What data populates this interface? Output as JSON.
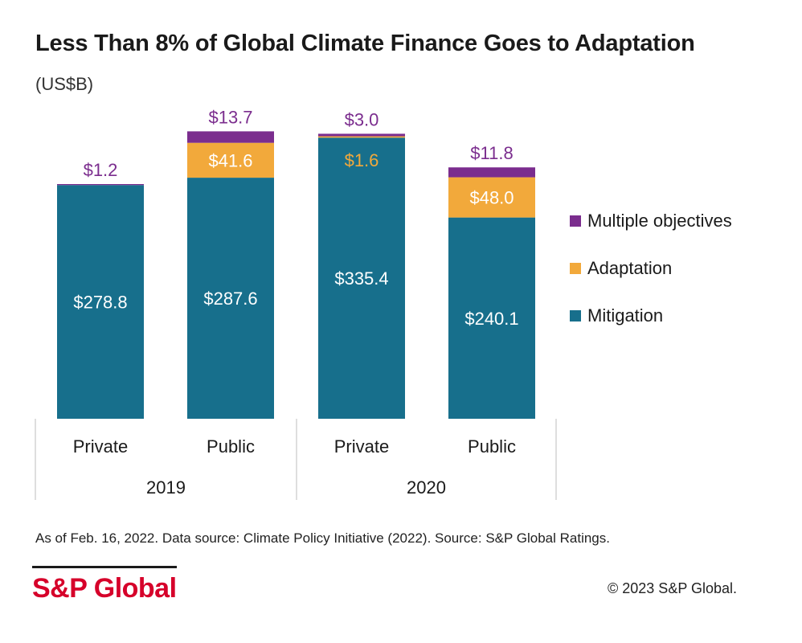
{
  "header": {
    "title": "Less Than 8% of Global Climate Finance Goes to Adaptation",
    "subtitle": "(US$B)"
  },
  "colors": {
    "mitigation": "#176f8c",
    "adaptation": "#f2a93b",
    "multiple": "#7b2d8e",
    "grid": "#c8c8c8"
  },
  "chart_data": {
    "type": "bar",
    "stacked": true,
    "categories": [
      "Private",
      "Public",
      "Private",
      "Public"
    ],
    "groups": [
      {
        "label": "2019",
        "span": [
          0,
          1
        ]
      },
      {
        "label": "2020",
        "span": [
          2,
          3
        ]
      }
    ],
    "series": [
      {
        "name": "Mitigation",
        "color": "#176f8c",
        "values": [
          278.8,
          287.6,
          335.4,
          240.1
        ],
        "labels": [
          "$278.8",
          "$287.6",
          "$335.4",
          "$240.1"
        ]
      },
      {
        "name": "Adaptation",
        "color": "#f2a93b",
        "values": [
          0,
          41.6,
          1.6,
          48.0
        ],
        "labels": [
          "",
          "$41.6",
          "$1.6",
          "$48.0"
        ]
      },
      {
        "name": "Multiple objectives",
        "color": "#7b2d8e",
        "values": [
          1.2,
          13.7,
          3.0,
          11.8
        ],
        "labels": [
          "$1.2",
          "$13.7",
          "$3.0",
          "$11.8"
        ]
      }
    ],
    "legend": [
      "Multiple objectives",
      "Adaptation",
      "Mitigation"
    ],
    "ylim": [
      0,
      350
    ],
    "grid": false,
    "legend_position": "right"
  },
  "footer": {
    "note": "As of Feb. 16, 2022. Data source: Climate Policy Initiative (2022). Source: S&P Global Ratings.",
    "logo_text": "S&P Global",
    "copyright": "© 2023 S&P Global."
  }
}
